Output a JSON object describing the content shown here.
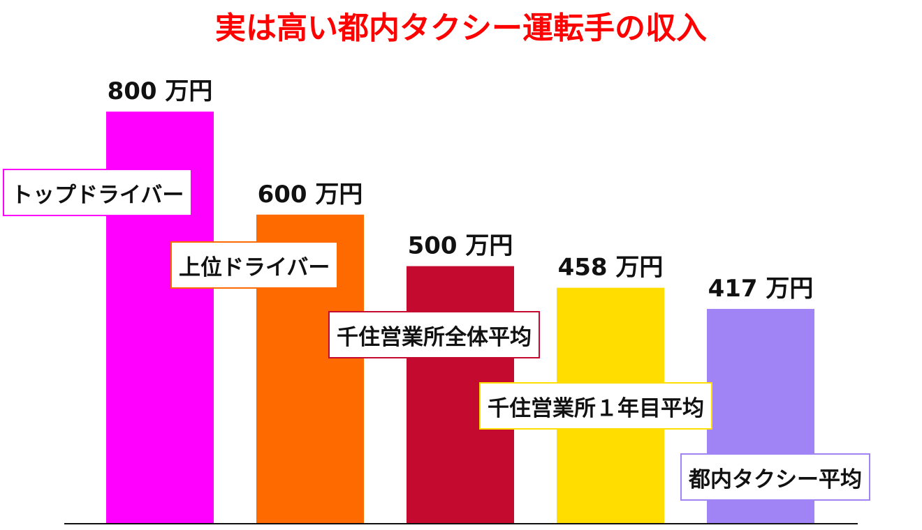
{
  "chart_data": {
    "type": "bar",
    "title": "実は高い都内タクシー運転手の収入",
    "categories": [
      "トップドライバー",
      "上位ドライバー",
      "千住営業所全体平均",
      "千住営業所１年目平均",
      "都内タクシー平均"
    ],
    "values": [
      800,
      600,
      500,
      458,
      417
    ],
    "value_labels": [
      "800 万円",
      "600 万円",
      "500 万円",
      "458 万円",
      "417 万円"
    ],
    "colors": [
      "#ff00ff",
      "#ff6a00",
      "#c40a2e",
      "#ffdd00",
      "#a084f5"
    ],
    "xlabel": "",
    "ylabel": "",
    "ylim": [
      0,
      800
    ],
    "grid": false,
    "legend": "none"
  }
}
